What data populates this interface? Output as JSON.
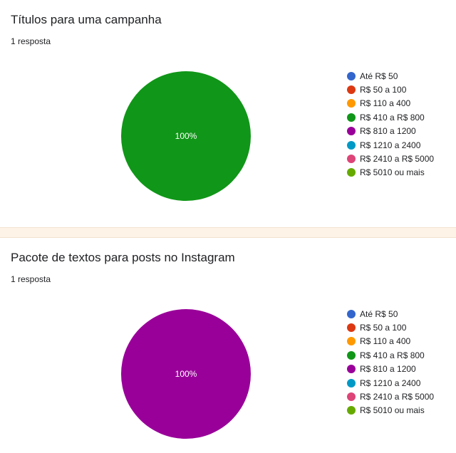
{
  "chart_data": [
    {
      "type": "pie",
      "title": "Títulos para uma campanha",
      "response_count": "1 resposta",
      "categories": [
        "Até R$ 50",
        "R$ 50 a 100",
        "R$ 110 a 400",
        "R$ 410 a R$ 800",
        "R$ 810 a 1200",
        "R$ 1210 a 2400",
        "R$ 2410 a R$ 5000",
        "R$ 5010 ou mais"
      ],
      "colors": [
        "#3366cc",
        "#dc3912",
        "#ff9900",
        "#109618",
        "#990099",
        "#0099c6",
        "#dd4477",
        "#66aa00"
      ],
      "values": [
        0,
        0,
        0,
        100,
        0,
        0,
        0,
        0
      ],
      "data_label": "100%",
      "legend_position": "right"
    },
    {
      "type": "pie",
      "title": "Pacote de textos para posts no Instagram",
      "response_count": "1 resposta",
      "categories": [
        "Até R$ 50",
        "R$ 50 a 100",
        "R$ 110 a 400",
        "R$ 410 a R$ 800",
        "R$ 810 a 1200",
        "R$ 1210 a 2400",
        "R$ 2410 a R$ 5000",
        "R$ 5010 ou mais"
      ],
      "colors": [
        "#3366cc",
        "#dc3912",
        "#ff9900",
        "#109618",
        "#990099",
        "#0099c6",
        "#dd4477",
        "#66aa00"
      ],
      "values": [
        0,
        0,
        0,
        0,
        100,
        0,
        0,
        0
      ],
      "data_label": "100%",
      "legend_position": "right"
    }
  ]
}
